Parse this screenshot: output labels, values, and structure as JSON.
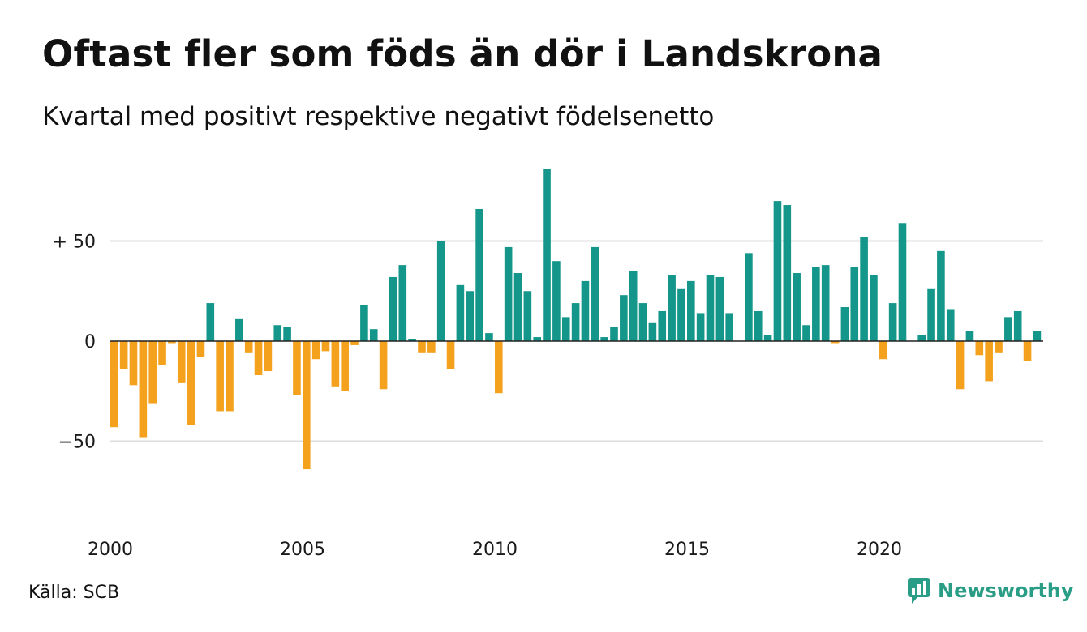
{
  "title": "Oftast fler som föds än dör i Landskrona",
  "subtitle": "Kvartal med positivt respektive negativt födelsenetto",
  "source": "Källa: SCB",
  "brand": {
    "name": "Newsworthy",
    "icon": "newsworthy-logo-icon",
    "color": "#2a9d86"
  },
  "colors": {
    "positive": "#14968a",
    "negative": "#f4a21d",
    "grid": "#dddddd",
    "zero": "#222222"
  },
  "chart_data": {
    "type": "bar",
    "title": "Oftast fler som föds än dör i Landskrona",
    "subtitle": "Kvartal med positivt respektive negativt födelsenetto",
    "xlabel": "",
    "ylabel": "",
    "x_start": 2000,
    "periods_per_year": 4,
    "x_ticks": [
      {
        "value": 2000,
        "label": "2000"
      },
      {
        "value": 2005,
        "label": "2005"
      },
      {
        "value": 2010,
        "label": "2010"
      },
      {
        "value": 2015,
        "label": "2015"
      },
      {
        "value": 2020,
        "label": "2020"
      }
    ],
    "y_ticks": [
      {
        "value": 50,
        "label": "+ 50"
      },
      {
        "value": 0,
        "label": "0"
      },
      {
        "value": -50,
        "label": "−50"
      }
    ],
    "ylim": [
      -80,
      90
    ],
    "grid": true,
    "values": [
      -43,
      -14,
      -22,
      -48,
      -31,
      -12,
      -1,
      -21,
      -42,
      -8,
      19,
      -35,
      -35,
      11,
      -6,
      -17,
      -15,
      8,
      7,
      -27,
      -64,
      -9,
      -5,
      -23,
      -25,
      -2,
      18,
      6,
      -24,
      32,
      38,
      1,
      -6,
      -6,
      50,
      -14,
      28,
      25,
      66,
      4,
      -26,
      47,
      34,
      25,
      2,
      86,
      40,
      12,
      19,
      30,
      47,
      2,
      7,
      23,
      35,
      19,
      9,
      15,
      33,
      26,
      30,
      14,
      33,
      32,
      14,
      0,
      44,
      15,
      3,
      70,
      68,
      34,
      8,
      37,
      38,
      -1,
      17,
      37,
      52,
      33,
      -9,
      19,
      59,
      0,
      3,
      26,
      45,
      16,
      -24,
      5,
      -7,
      -20,
      -6,
      12,
      15,
      -10,
      5
    ]
  }
}
